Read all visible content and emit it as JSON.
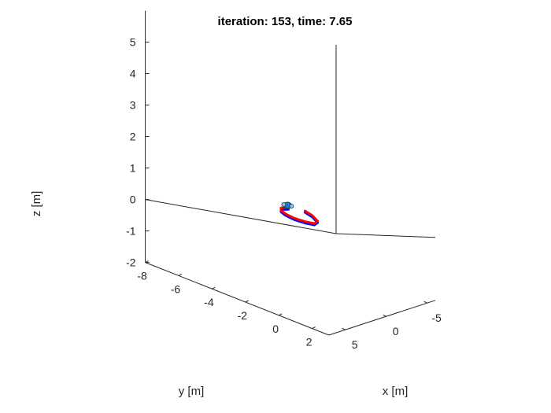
{
  "chart_data": {
    "type": "line",
    "title": "iteration: 153, time: 7.65",
    "xlabel": "x [m]",
    "ylabel": "y [m]",
    "zlabel": "z [m]",
    "xlim": [
      -6,
      7
    ],
    "ylim": [
      -8,
      3
    ],
    "zlim": [
      -2,
      6
    ],
    "x_ticks": [
      "5",
      "0",
      "-5"
    ],
    "x_tick_values": [
      5,
      0,
      -5
    ],
    "y_ticks": [
      "-8",
      "-6",
      "-4",
      "-2",
      "0",
      "2"
    ],
    "y_tick_values": [
      -8,
      -6,
      -4,
      -2,
      0,
      2
    ],
    "z_ticks": [
      "-2",
      "-1",
      "0",
      "1",
      "2",
      "3",
      "4",
      "5"
    ],
    "z_tick_values": [
      -2,
      -1,
      0,
      1,
      2,
      3,
      4,
      5
    ],
    "grid": false,
    "series": [
      {
        "color": "#0000ff",
        "x": [
          -1.5,
          -1.2,
          -0.6,
          0.0,
          0.3,
          0.45,
          0.3,
          0.0,
          -0.4,
          -0.9
        ],
        "y": [
          -2.6,
          -2.0,
          -1.4,
          -1.3,
          -1.7,
          -2.3,
          -2.9,
          -3.3,
          -3.5,
          -3.3
        ],
        "z": [
          0,
          0,
          0,
          0,
          0,
          0,
          0,
          0,
          0,
          0
        ]
      },
      {
        "color": "#ff0000",
        "x": [
          -1.5,
          -1.2,
          -0.6,
          0.0,
          0.3,
          0.45,
          0.3,
          0.0,
          -0.4,
          -0.9
        ],
        "y": [
          -2.6,
          -2.0,
          -1.4,
          -1.3,
          -1.7,
          -2.3,
          -2.9,
          -3.3,
          -3.5,
          -3.3
        ],
        "z": [
          0.05,
          0.05,
          0.05,
          0.05,
          0.05,
          0.05,
          0.05,
          0.05,
          0.05,
          0.05
        ]
      }
    ],
    "marker": {
      "color": "#1f7ab8",
      "x": -1.0,
      "y": -3.4,
      "z": 0.1
    }
  }
}
